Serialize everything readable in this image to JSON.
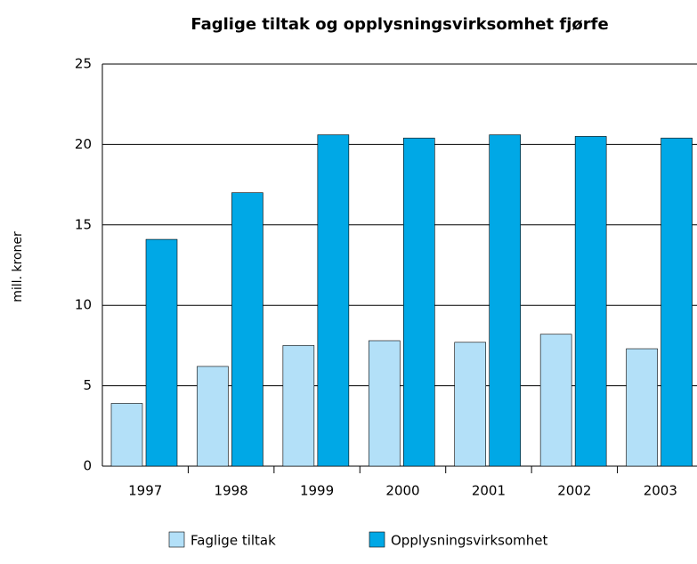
{
  "chart_data": {
    "type": "bar",
    "title": "Faglige tiltak og opplysningsvirksomhet fjørfe",
    "ylabel": "mill. kroner",
    "categories": [
      "1997",
      "1998",
      "1999",
      "2000",
      "2001",
      "2002",
      "2003"
    ],
    "series": [
      {
        "name": "Faglige tiltak",
        "color": "#b3e0f8",
        "values": [
          3.9,
          6.2,
          7.5,
          7.8,
          7.7,
          8.2,
          7.3
        ]
      },
      {
        "name": "Opplysningsvirksomhet",
        "color": "#00a8e6",
        "values": [
          14.1,
          17.0,
          20.6,
          20.4,
          20.6,
          20.5,
          20.4
        ]
      }
    ],
    "ylim": [
      0,
      25
    ],
    "yticks": [
      0,
      5,
      10,
      15,
      20,
      25
    ],
    "grid": true
  }
}
